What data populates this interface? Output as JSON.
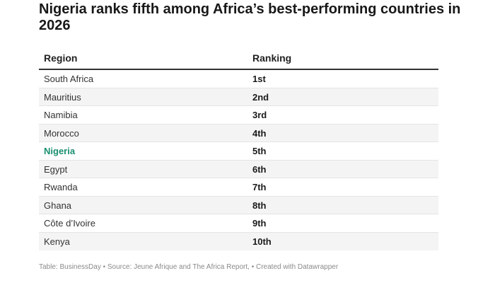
{
  "title": "Nigeria ranks fifth among Africa’s best-performing countries in 2026",
  "footer": "Table: BusinessDay • Source: Jeune Afrique and The Africa Report, • Created with Datawrapper",
  "colors": {
    "highlight": "#1a8f70",
    "shaded_row": "#f4f4f4",
    "header_rule": "#333333"
  },
  "chart_data": {
    "type": "table",
    "columns": [
      "Region",
      "Ranking"
    ],
    "rows": [
      {
        "region": "South Africa",
        "ranking": "1st"
      },
      {
        "region": "Mauritius",
        "ranking": "2nd"
      },
      {
        "region": "Namibia",
        "ranking": "3rd"
      },
      {
        "region": "Morocco",
        "ranking": "4th"
      },
      {
        "region": "Nigeria",
        "ranking": "5th",
        "highlighted": true
      },
      {
        "region": "Egypt",
        "ranking": "6th"
      },
      {
        "region": "Rwanda",
        "ranking": "7th"
      },
      {
        "region": "Ghana",
        "ranking": "8th"
      },
      {
        "region": "Côte d’Ivoire",
        "ranking": "9th"
      },
      {
        "region": "Kenya",
        "ranking": "10th"
      }
    ]
  }
}
